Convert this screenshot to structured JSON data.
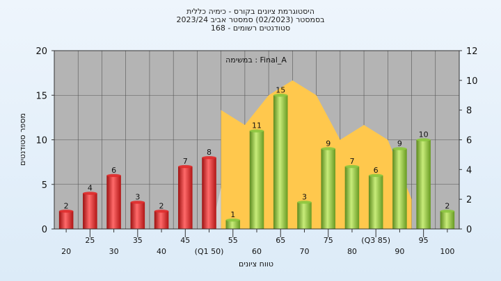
{
  "title_lines": [
    "היסטוגרמת ציונים בקורס - כימיה כללית",
    "בסמסטר  (02/2023)  סמסטר אביב 2023/24",
    "168 - סטודנטים רשומים"
  ],
  "chart_data": {
    "type": "bar",
    "annotation": "במשימה : Final_A",
    "xlabel": "טווח ציונים",
    "ylabel": "מספר סטודנטים",
    "ylim": [
      0,
      20
    ],
    "y_ticks": [
      "0",
      "5",
      "10",
      "15",
      "20"
    ],
    "y2lim": [
      0,
      12
    ],
    "y2_ticks": [
      "0",
      "2",
      "4",
      "6",
      "8",
      "10",
      "12"
    ],
    "grid": true,
    "bin_upper_values": [
      20,
      25,
      30,
      35,
      40,
      45,
      50,
      55,
      60,
      65,
      70,
      75,
      80,
      85,
      90,
      95,
      100
    ],
    "x_tick_labels": [
      "20",
      "25",
      "30",
      "35",
      "40",
      "45",
      "(Q1 50)",
      "55",
      "60",
      "65",
      "70",
      "75",
      "80",
      "(Q3 85)",
      "90",
      "95",
      "100"
    ],
    "values": [
      2,
      4,
      6,
      3,
      2,
      7,
      8,
      1,
      11,
      15,
      3,
      9,
      7,
      6,
      9,
      10,
      2
    ],
    "bar_colors": [
      "#e02b2b",
      "#e02b2b",
      "#e02b2b",
      "#e02b2b",
      "#e02b2b",
      "#e02b2b",
      "#e02b2b",
      "#8cc63f",
      "#8cc63f",
      "#8cc63f",
      "#8cc63f",
      "#8cc63f",
      "#8cc63f",
      "#8cc63f",
      "#8cc63f",
      "#8cc63f",
      "#8cc63f"
    ],
    "area_series": {
      "values": [
        8,
        7,
        9,
        10,
        9,
        6,
        7,
        6,
        2
      ],
      "fill": "#ffc84d",
      "shadow": "#d0d0d0"
    },
    "colors": {
      "plot_bg": "#b4b4b4",
      "grid": "#555555"
    }
  }
}
